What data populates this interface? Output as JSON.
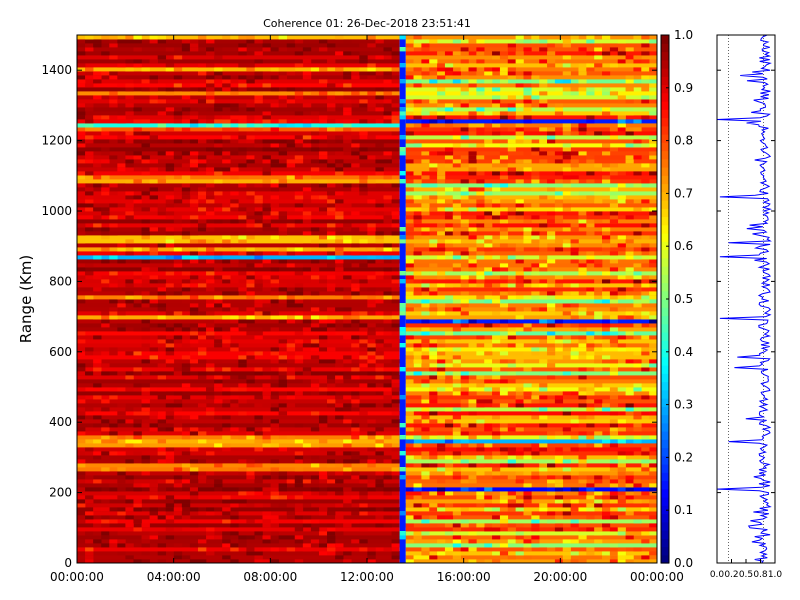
{
  "title": "Coherence 01: 26-Dec-2018 23:51:41",
  "chart_data": [
    {
      "type": "heatmap",
      "title": "Coherence 01: 26-Dec-2018 23:51:41",
      "xlabel": "",
      "ylabel": "Range (Km)",
      "x_tick_labels": [
        "00:00:00",
        "04:00:00",
        "08:00:00",
        "12:00:00",
        "16:00:00",
        "20:00:00",
        "00:00:00"
      ],
      "x_range_hours": [
        0,
        24
      ],
      "y_ticks": [
        0,
        200,
        400,
        600,
        800,
        1000,
        1200,
        1400
      ],
      "y_range": [
        0,
        1500
      ],
      "colormap": "jet",
      "colorbar": {
        "range": [
          0,
          1
        ],
        "ticks": [
          "0.0",
          "0.1",
          "0.2",
          "0.3",
          "0.4",
          "0.5",
          "0.6",
          "0.7",
          "0.8",
          "0.9",
          "1.0"
        ]
      },
      "data_gap_hours": [
        13.35,
        13.6
      ],
      "segments": [
        {
          "from_hour": 0,
          "to_hour": 13.35,
          "typical_coherence": 0.88
        },
        {
          "from_hour": 13.6,
          "to_hour": 24,
          "typical_coherence": 0.72
        }
      ],
      "low_coherence_range_bands_km": [
        {
          "segment": 0,
          "range_km": 1243,
          "value": 0.4
        },
        {
          "segment": 0,
          "range_km": 873,
          "value": 0.3
        },
        {
          "segment": 1,
          "range_km": 1260,
          "value": 0.15
        },
        {
          "segment": 1,
          "range_km": 693,
          "value": 0.15
        },
        {
          "segment": 1,
          "range_km": 347,
          "value": 0.3
        },
        {
          "segment": 1,
          "range_km": 210,
          "value": 0.12
        }
      ]
    },
    {
      "type": "line",
      "title": "",
      "xlabel": "",
      "ylabel": "",
      "x_tick_labels": [
        "0.0",
        "0.2",
        "0.5",
        "0.8",
        "1.0"
      ],
      "xlim": [
        0,
        1
      ],
      "ylim": [
        0,
        1500
      ],
      "typical_value": 0.82,
      "line_color": "#0000ff"
    }
  ]
}
